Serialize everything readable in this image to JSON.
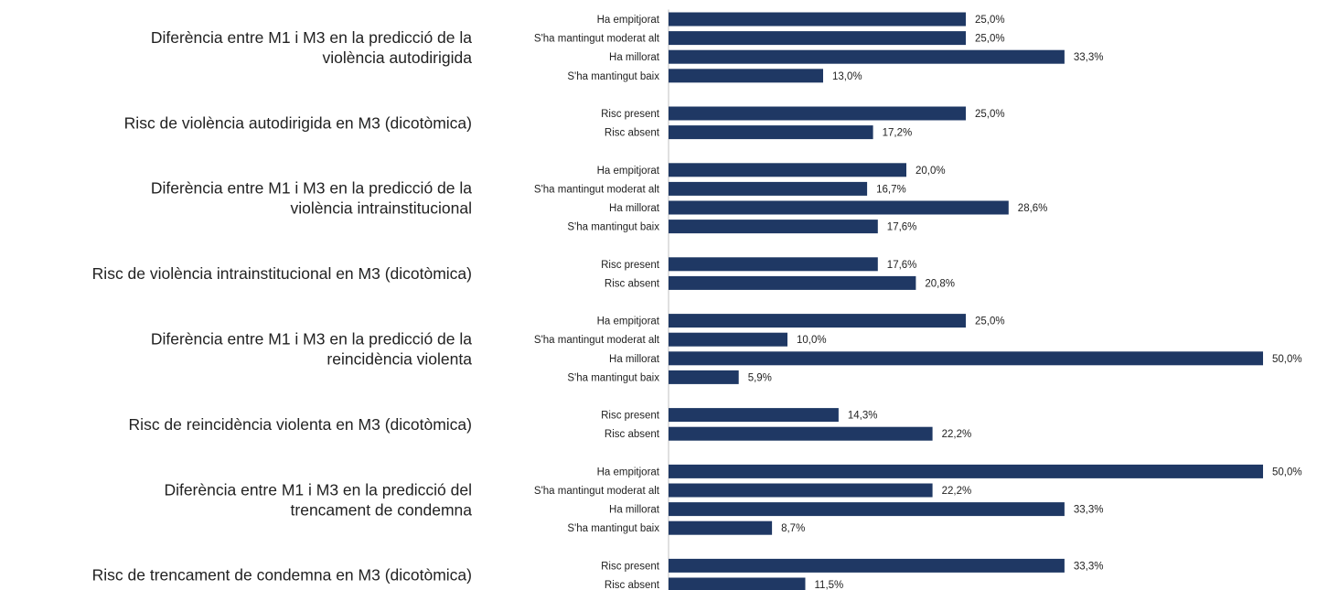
{
  "chart_data": {
    "type": "bar",
    "orientation": "horizontal",
    "xlim": [
      0,
      50
    ],
    "value_suffix": "%",
    "bar_color": "#1f3864",
    "groups": [
      {
        "label_lines": [
          "Diferència entre M1 i M3 en la predicció de la",
          "violència autodirigida"
        ],
        "bars": [
          {
            "category": "Ha empitjorat",
            "value": 25.0,
            "label": "25,0%"
          },
          {
            "category": "S'ha mantingut moderat alt",
            "value": 25.0,
            "label": "25,0%"
          },
          {
            "category": "Ha millorat",
            "value": 33.3,
            "label": "33,3%"
          },
          {
            "category": "S'ha mantingut baix",
            "value": 13.0,
            "label": "13,0%"
          }
        ]
      },
      {
        "label_lines": [
          "Risc de violència autodirigida en M3 (dicotòmica)"
        ],
        "bars": [
          {
            "category": "Risc present",
            "value": 25.0,
            "label": "25,0%"
          },
          {
            "category": "Risc absent",
            "value": 17.2,
            "label": "17,2%"
          }
        ]
      },
      {
        "label_lines": [
          "Diferència entre M1 i M3 en la predicció de la",
          "violència intrainstitucional"
        ],
        "bars": [
          {
            "category": "Ha empitjorat",
            "value": 20.0,
            "label": "20,0%"
          },
          {
            "category": "S'ha mantingut moderat alt",
            "value": 16.7,
            "label": "16,7%"
          },
          {
            "category": "Ha millorat",
            "value": 28.6,
            "label": "28,6%"
          },
          {
            "category": "S'ha mantingut baix",
            "value": 17.6,
            "label": "17,6%"
          }
        ]
      },
      {
        "label_lines": [
          "Risc de violència intrainstitucional en M3 (dicotòmica)"
        ],
        "bars": [
          {
            "category": "Risc present",
            "value": 17.6,
            "label": "17,6%"
          },
          {
            "category": "Risc absent",
            "value": 20.8,
            "label": "20,8%"
          }
        ]
      },
      {
        "label_lines": [
          "Diferència entre M1 i M3 en la predicció de la",
          "reincidència violenta"
        ],
        "bars": [
          {
            "category": "Ha empitjorat",
            "value": 25.0,
            "label": "25,0%"
          },
          {
            "category": "S'ha mantingut moderat alt",
            "value": 10.0,
            "label": "10,0%"
          },
          {
            "category": "Ha millorat",
            "value": 50.0,
            "label": "50,0%"
          },
          {
            "category": "S'ha mantingut baix",
            "value": 5.9,
            "label": "5,9%"
          }
        ]
      },
      {
        "label_lines": [
          "Risc de reincidència violenta en M3 (dicotòmica)"
        ],
        "bars": [
          {
            "category": "Risc present",
            "value": 14.3,
            "label": "14,3%"
          },
          {
            "category": "Risc absent",
            "value": 22.2,
            "label": "22,2%"
          }
        ]
      },
      {
        "label_lines": [
          "Diferència entre M1 i M3 en la predicció del",
          "trencament de condemna"
        ],
        "bars": [
          {
            "category": "Ha empitjorat",
            "value": 50.0,
            "label": "50,0%"
          },
          {
            "category": "S'ha mantingut moderat alt",
            "value": 22.2,
            "label": "22,2%"
          },
          {
            "category": "Ha millorat",
            "value": 33.3,
            "label": "33,3%"
          },
          {
            "category": "S'ha mantingut baix",
            "value": 8.7,
            "label": "8,7%"
          }
        ]
      },
      {
        "label_lines": [
          "Risc de trencament de condemna en M3 (dicotòmica)"
        ],
        "bars": [
          {
            "category": "Risc present",
            "value": 33.3,
            "label": "33,3%"
          },
          {
            "category": "Risc absent",
            "value": 11.5,
            "label": "11,5%"
          }
        ]
      }
    ]
  }
}
